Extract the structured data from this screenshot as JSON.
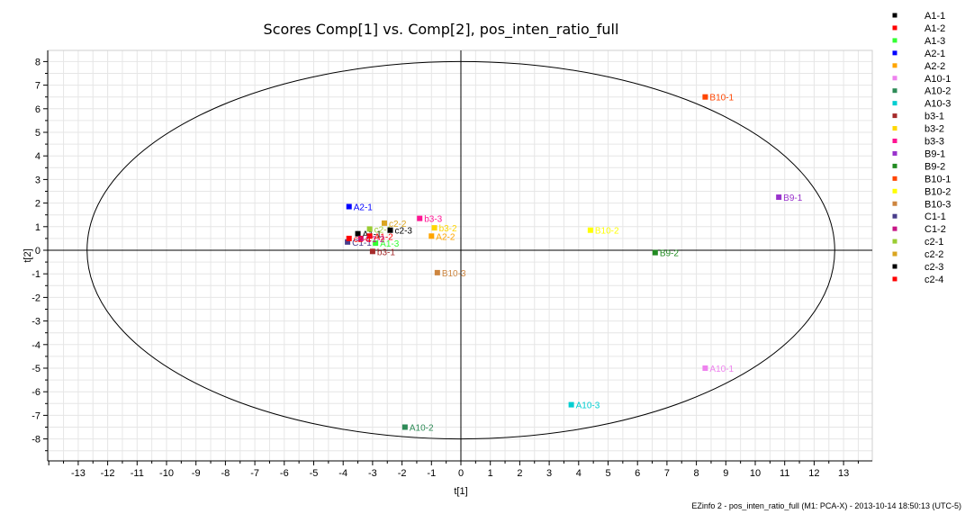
{
  "chart_data": {
    "type": "scatter",
    "title": "Scores Comp[1] vs. Comp[2], pos_inten_ratio_full",
    "xlabel": "t[1]",
    "ylabel": "t[2]",
    "xlim": [
      -14,
      14
    ],
    "ylim": [
      -9,
      9
    ],
    "x_ticks": [
      -13,
      -12,
      -11,
      -10,
      -9,
      -8,
      -7,
      -6,
      -5,
      -4,
      -3,
      -2,
      -1,
      0,
      1,
      2,
      3,
      4,
      5,
      6,
      7,
      8,
      9,
      10,
      11,
      12,
      13
    ],
    "y_ticks": [
      -8,
      -7,
      -6,
      -5,
      -4,
      -3,
      -2,
      -1,
      0,
      1,
      2,
      3,
      4,
      5,
      6,
      7,
      8
    ],
    "grid": true,
    "ellipse": {
      "rx": 12.7,
      "ry": 8.0
    },
    "legend_position": "right",
    "series": [
      {
        "name": "A1-1",
        "color": "#000000",
        "x": -3.5,
        "y": 0.7,
        "label": "A1-1"
      },
      {
        "name": "A1-2",
        "color": "#ff0000",
        "x": -3.1,
        "y": 0.6,
        "label": "A1-2"
      },
      {
        "name": "A1-3",
        "color": "#33ff33",
        "x": -2.9,
        "y": 0.3,
        "label": "A1-3"
      },
      {
        "name": "A2-1",
        "color": "#0000ff",
        "x": -3.8,
        "y": 1.85,
        "label": "A2-1"
      },
      {
        "name": "A2-2",
        "color": "#ffa500",
        "x": -1.0,
        "y": 0.6,
        "label": "A2-2"
      },
      {
        "name": "A10-1",
        "color": "#ee82ee",
        "x": 8.3,
        "y": -5.0,
        "label": "A10-1"
      },
      {
        "name": "A10-2",
        "color": "#2e8b57",
        "x": -1.9,
        "y": -7.5,
        "label": "A10-2"
      },
      {
        "name": "A10-3",
        "color": "#00ced1",
        "x": 3.75,
        "y": -6.55,
        "label": "A10-3"
      },
      {
        "name": "b3-1",
        "color": "#a52a2a",
        "x": -3.0,
        "y": -0.05,
        "label": "b3-1"
      },
      {
        "name": "b3-2",
        "color": "#ffd700",
        "x": -0.9,
        "y": 0.95,
        "label": "b3-2"
      },
      {
        "name": "b3-3",
        "color": "#ff1493",
        "x": -1.4,
        "y": 1.35,
        "label": "b3-3"
      },
      {
        "name": "B9-1",
        "color": "#9932cc",
        "x": 10.8,
        "y": 2.25,
        "label": "B9-1"
      },
      {
        "name": "B9-2",
        "color": "#228b22",
        "x": 6.6,
        "y": -0.1,
        "label": "B9-2"
      },
      {
        "name": "B10-1",
        "color": "#ff4500",
        "x": 8.3,
        "y": 6.5,
        "label": "B10-1"
      },
      {
        "name": "B10-2",
        "color": "#ffff00",
        "x": 4.4,
        "y": 0.85,
        "label": "B10-2"
      },
      {
        "name": "B10-3",
        "color": "#cd853f",
        "x": -0.8,
        "y": -0.95,
        "label": "B10-3"
      },
      {
        "name": "C1-1",
        "color": "#483d8b",
        "x": -3.85,
        "y": 0.35,
        "label": "C1-1"
      },
      {
        "name": "C1-2",
        "color": "#c71585",
        "x": -3.4,
        "y": 0.5,
        "label": "C1-2"
      },
      {
        "name": "c2-1",
        "color": "#9acd32",
        "x": -3.1,
        "y": 0.9,
        "label": "c2-1"
      },
      {
        "name": "c2-2",
        "color": "#daa520",
        "x": -2.6,
        "y": 1.15,
        "label": "c2-2"
      },
      {
        "name": "c2-3",
        "color": "#000000",
        "x": -2.4,
        "y": 0.85,
        "label": "c2-3"
      },
      {
        "name": "c2-4",
        "color": "#ff0000",
        "x": -3.8,
        "y": 0.5,
        "label": "c2-4"
      }
    ]
  },
  "footer": "EZinfo 2 - pos_inten_ratio_full (M1: PCA-X) - 2013-10-14 18:50:13 (UTC-5)"
}
